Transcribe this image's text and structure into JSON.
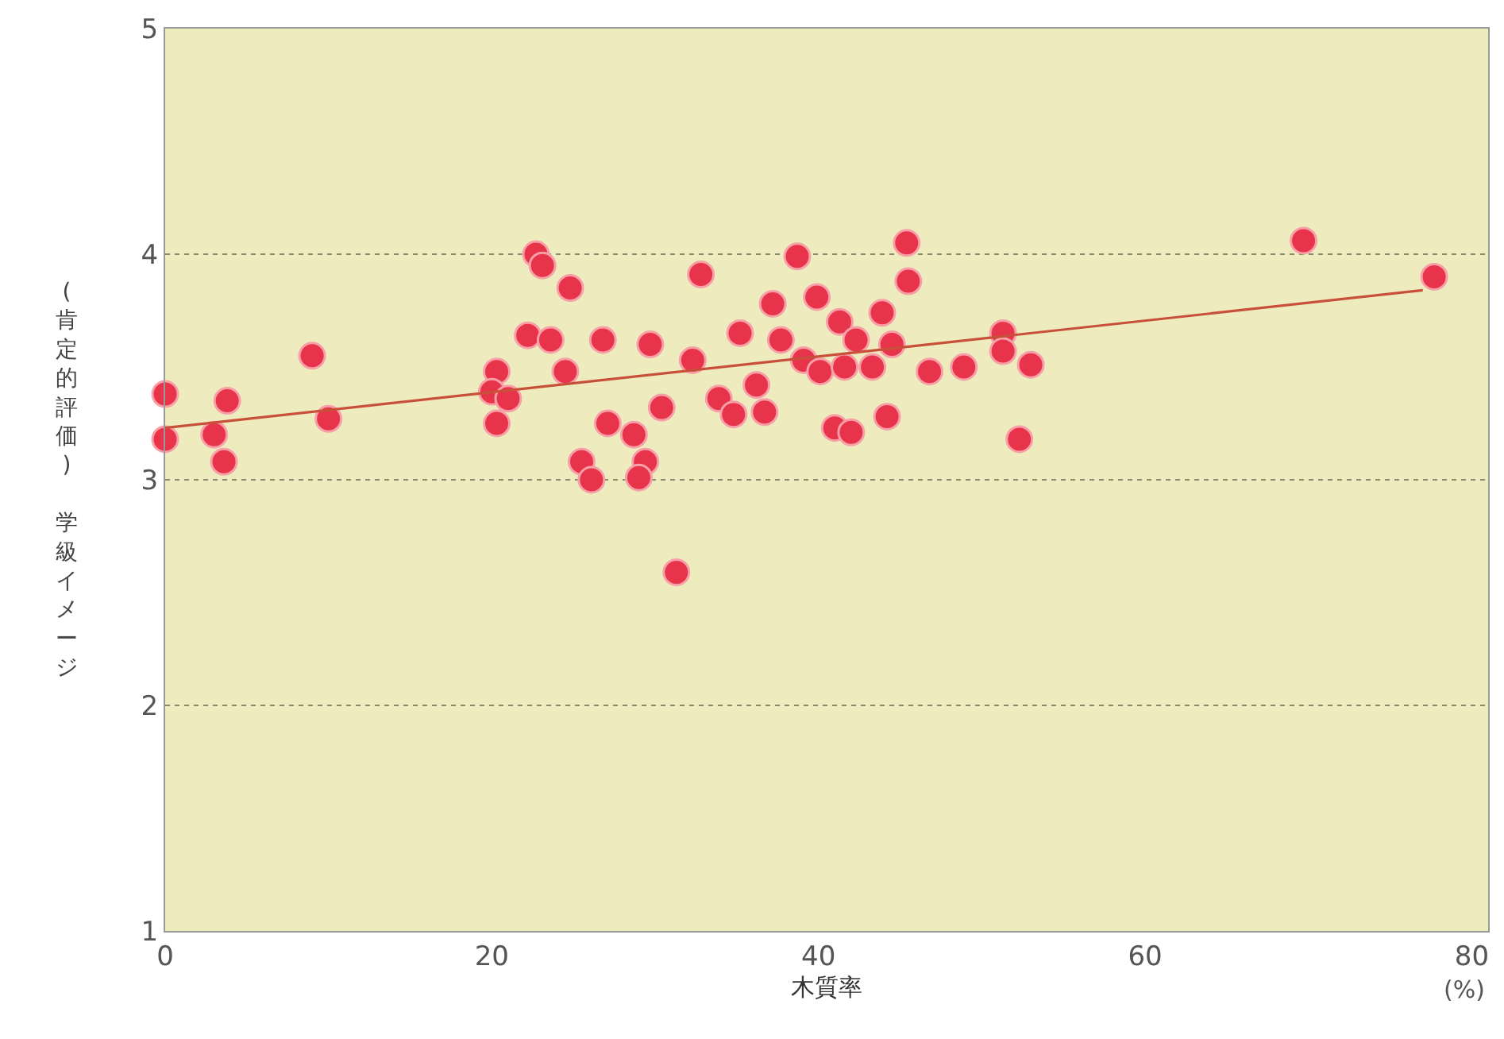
{
  "chart_data": {
    "type": "scatter",
    "xlabel": "木質率",
    "ylabel": "(肯定的評価) 学級イメージ",
    "annotations": [
      "(%)"
    ],
    "xlim": [
      0,
      81
    ],
    "ylim": [
      1,
      5
    ],
    "xticks": [
      0,
      20,
      40,
      60,
      80
    ],
    "yticks": [
      1,
      2,
      3,
      4,
      5
    ],
    "grid": "y",
    "marker": "circle",
    "series": [
      {
        "color": "#e8344a",
        "x": [
          0,
          0,
          3.0,
          3.6,
          3.8,
          9.0,
          10.0,
          22.7,
          23.1,
          24.8,
          32.8,
          38.7,
          45.4,
          45.5,
          22.2,
          23.6,
          26.8,
          29.7,
          20.3,
          24.5,
          32.3,
          35.2,
          37.2,
          39.9,
          41.3,
          43.9,
          42.3,
          37.7,
          39.1,
          40.1,
          41.6,
          43.3,
          44.5,
          51.3,
          51.3,
          46.8,
          48.9,
          53.0,
          20.0,
          21.0,
          20.3,
          30.4,
          33.9,
          36.2,
          34.8,
          36.7,
          27.1,
          28.7,
          29.4,
          29.0,
          25.5,
          26.1,
          41.0,
          42.0,
          44.2,
          52.3,
          31.3,
          69.7,
          77.7
        ],
        "values": [
          3.38,
          3.18,
          3.2,
          3.08,
          3.35,
          3.55,
          3.27,
          4.0,
          3.95,
          3.85,
          3.91,
          3.99,
          4.05,
          3.88,
          3.64,
          3.62,
          3.62,
          3.6,
          3.48,
          3.48,
          3.53,
          3.65,
          3.78,
          3.81,
          3.7,
          3.74,
          3.62,
          3.62,
          3.53,
          3.48,
          3.5,
          3.5,
          3.6,
          3.65,
          3.57,
          3.48,
          3.5,
          3.51,
          3.39,
          3.36,
          3.25,
          3.32,
          3.36,
          3.42,
          3.29,
          3.3,
          3.25,
          3.2,
          3.08,
          3.01,
          3.08,
          3.0,
          3.23,
          3.21,
          3.28,
          3.18,
          2.59,
          4.06,
          3.9
        ]
      },
      {
        "type": "line",
        "color": "#c8503a",
        "marker": "none",
        "x": [
          0,
          77
        ],
        "values": [
          3.23,
          3.84
        ]
      }
    ]
  }
}
